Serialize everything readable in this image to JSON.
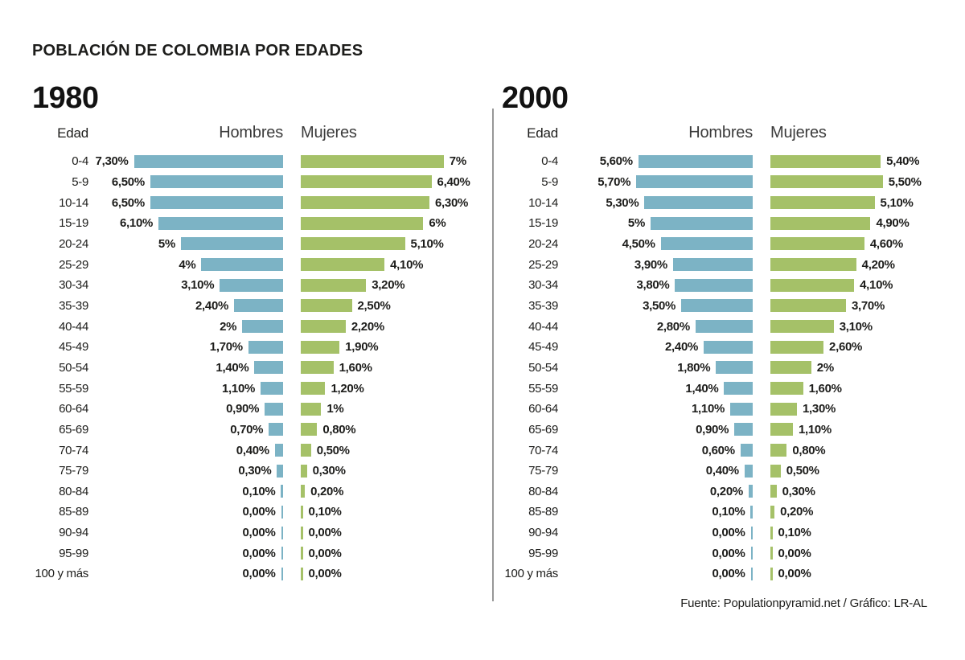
{
  "page_title": "POBLACIÓN DE COLOMBIA POR EDADES",
  "footer": "Fuente: Populationpyramid.net / Gráfico: LR-AL",
  "colors": {
    "male_bar": "#7cb3c5",
    "female_bar": "#a5c168"
  },
  "chart_data": [
    {
      "type": "bar",
      "subtype": "population-pyramid",
      "title": "1980",
      "age_header": "Edad",
      "male_header": "Hombres",
      "female_header": "Mujeres",
      "unit": "%",
      "axis": "none",
      "legend_position": "top",
      "categories": [
        "0-4",
        "5-9",
        "10-14",
        "15-19",
        "20-24",
        "25-29",
        "30-34",
        "35-39",
        "40-44",
        "45-49",
        "50-54",
        "55-59",
        "60-64",
        "65-69",
        "70-74",
        "75-79",
        "80-84",
        "85-89",
        "90-94",
        "95-99",
        "100 y más"
      ],
      "series": [
        {
          "name": "Hombres",
          "color": "#7cb3c5",
          "values": [
            7.3,
            6.5,
            6.5,
            6.1,
            5,
            4,
            3.1,
            2.4,
            2,
            1.7,
            1.4,
            1.1,
            0.9,
            0.7,
            0.4,
            0.3,
            0.1,
            0,
            0,
            0,
            0
          ],
          "labels": [
            "7,30%",
            "6,50%",
            "6,50%",
            "6,10%",
            "5%",
            "4%",
            "3,10%",
            "2,40%",
            "2%",
            "1,70%",
            "1,40%",
            "1,10%",
            "0,90%",
            "0,70%",
            "0,40%",
            "0,30%",
            "0,10%",
            "0,00%",
            "0,00%",
            "0,00%",
            "0,00%"
          ]
        },
        {
          "name": "Mujeres",
          "color": "#a5c168",
          "values": [
            7,
            6.4,
            6.3,
            6,
            5.1,
            4.1,
            3.2,
            2.5,
            2.2,
            1.9,
            1.6,
            1.2,
            1,
            0.8,
            0.5,
            0.3,
            0.2,
            0.1,
            0,
            0,
            0
          ],
          "labels": [
            "7%",
            "6,40%",
            "6,30%",
            "6%",
            "5,10%",
            "4,10%",
            "3,20%",
            "2,50%",
            "2,20%",
            "1,90%",
            "1,60%",
            "1,20%",
            "1%",
            "0,80%",
            "0,50%",
            "0,30%",
            "0,20%",
            "0,10%",
            "0,00%",
            "0,00%",
            "0,00%"
          ]
        }
      ]
    },
    {
      "type": "bar",
      "subtype": "population-pyramid",
      "title": "2000",
      "age_header": "Edad",
      "male_header": "Hombres",
      "female_header": "Mujeres",
      "unit": "%",
      "axis": "none",
      "legend_position": "top",
      "categories": [
        "0-4",
        "5-9",
        "10-14",
        "15-19",
        "20-24",
        "25-29",
        "30-34",
        "35-39",
        "40-44",
        "45-49",
        "50-54",
        "55-59",
        "60-64",
        "65-69",
        "70-74",
        "75-79",
        "80-84",
        "85-89",
        "90-94",
        "95-99",
        "100 y más"
      ],
      "series": [
        {
          "name": "Hombres",
          "color": "#7cb3c5",
          "values": [
            5.6,
            5.7,
            5.3,
            5,
            4.5,
            3.9,
            3.8,
            3.5,
            2.8,
            2.4,
            1.8,
            1.4,
            1.1,
            0.9,
            0.6,
            0.4,
            0.2,
            0.1,
            0,
            0,
            0
          ],
          "labels": [
            "5,60%",
            "5,70%",
            "5,30%",
            "5%",
            "4,50%",
            "3,90%",
            "3,80%",
            "3,50%",
            "2,80%",
            "2,40%",
            "1,80%",
            "1,40%",
            "1,10%",
            "0,90%",
            "0,60%",
            "0,40%",
            "0,20%",
            "0,10%",
            "0,00%",
            "0,00%",
            "0,00%"
          ]
        },
        {
          "name": "Mujeres",
          "color": "#a5c168",
          "values": [
            5.4,
            5.5,
            5.1,
            4.9,
            4.6,
            4.2,
            4.1,
            3.7,
            3.1,
            2.6,
            2,
            1.6,
            1.3,
            1.1,
            0.8,
            0.5,
            0.3,
            0.2,
            0.1,
            0,
            0
          ],
          "labels": [
            "5,40%",
            "5,50%",
            "5,10%",
            "4,90%",
            "4,60%",
            "4,20%",
            "4,10%",
            "3,70%",
            "3,10%",
            "2,60%",
            "2%",
            "1,60%",
            "1,30%",
            "1,10%",
            "0,80%",
            "0,50%",
            "0,30%",
            "0,20%",
            "0,10%",
            "0,00%",
            "0,00%"
          ]
        }
      ]
    }
  ]
}
